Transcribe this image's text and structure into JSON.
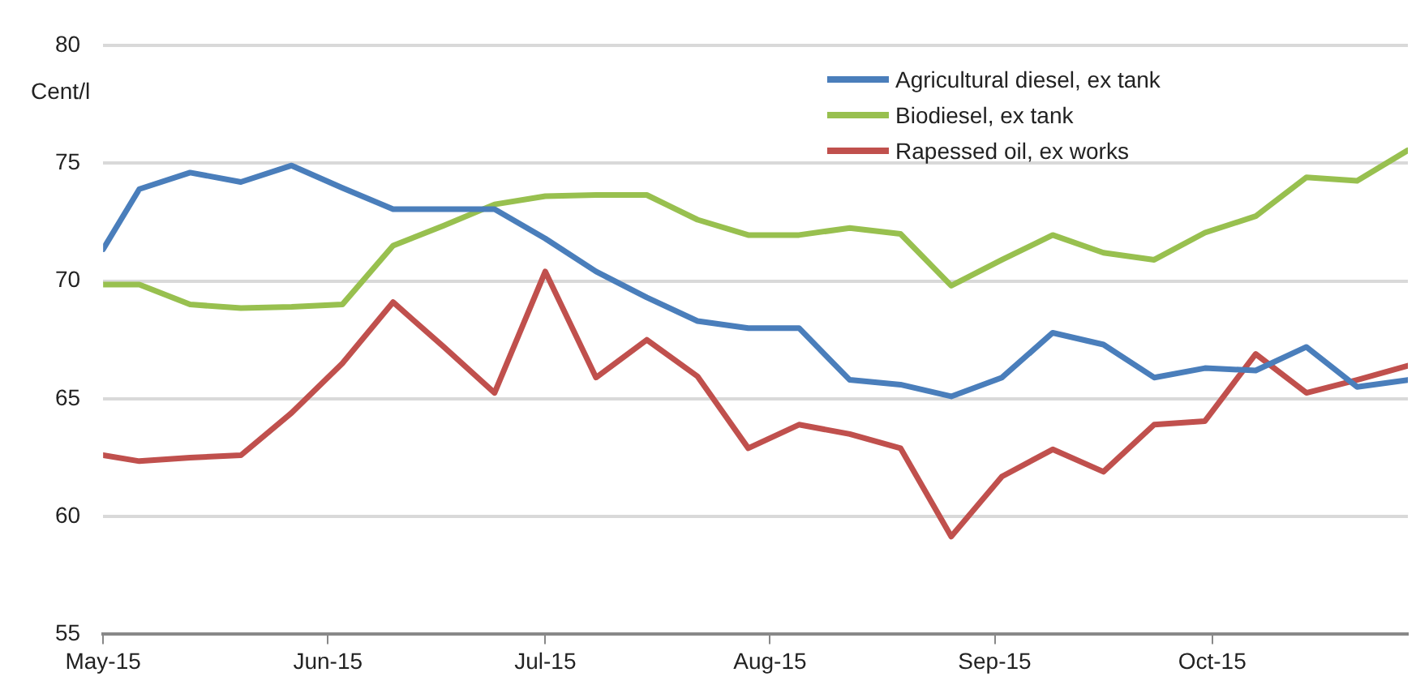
{
  "chart_data": {
    "type": "line",
    "ylabel": "Cent/l",
    "x": [
      "2015-05-01",
      "2015-05-06",
      "2015-05-13",
      "2015-05-20",
      "2015-05-27",
      "2015-06-03",
      "2015-06-10",
      "2015-06-17",
      "2015-06-24",
      "2015-07-01",
      "2015-07-08",
      "2015-07-15",
      "2015-07-22",
      "2015-07-29",
      "2015-08-05",
      "2015-08-12",
      "2015-08-19",
      "2015-08-26",
      "2015-09-02",
      "2015-09-09",
      "2015-09-16",
      "2015-09-23",
      "2015-09-30",
      "2015-10-07",
      "2015-10-14",
      "2015-10-21",
      "2015-10-28"
    ],
    "series": [
      {
        "name": "Agricultural diesel, ex tank",
        "color": "#4a7ebb",
        "values": [
          71.35,
          73.9,
          74.6,
          74.2,
          74.9,
          73.95,
          73.05,
          73.05,
          73.05,
          71.8,
          70.4,
          69.3,
          68.3,
          68.0,
          68.0,
          65.8,
          65.6,
          65.1,
          65.9,
          67.8,
          67.3,
          65.9,
          66.3,
          66.2,
          67.2,
          65.5,
          65.8
        ]
      },
      {
        "name": "Biodiesel, ex tank",
        "color": "#98c04f",
        "values": [
          69.85,
          69.85,
          69.0,
          68.85,
          68.9,
          69.0,
          71.5,
          72.35,
          73.25,
          73.6,
          73.65,
          73.65,
          72.6,
          71.95,
          71.95,
          72.25,
          72.0,
          69.8,
          70.9,
          71.95,
          71.2,
          70.9,
          72.05,
          72.75,
          74.4,
          74.25,
          75.55
        ]
      },
      {
        "name": "Rapessed oil, ex works",
        "color": "#c0504d",
        "values": [
          62.6,
          62.35,
          62.5,
          62.6,
          64.4,
          66.5,
          69.1,
          67.2,
          65.25,
          70.4,
          65.9,
          67.5,
          65.95,
          62.9,
          63.9,
          63.5,
          62.9,
          59.15,
          61.7,
          62.85,
          61.9,
          63.9,
          64.05,
          66.9,
          65.25,
          65.8,
          66.4
        ]
      }
    ],
    "xlim": [
      "2015-05-01",
      "2015-10-28"
    ],
    "xticks": [
      {
        "value": "2015-05-01",
        "label": "May-15"
      },
      {
        "value": "2015-06-01",
        "label": "Jun-15"
      },
      {
        "value": "2015-07-01",
        "label": "Jul-15"
      },
      {
        "value": "2015-08-01",
        "label": "Aug-15"
      },
      {
        "value": "2015-09-01",
        "label": "Sep-15"
      },
      {
        "value": "2015-10-01",
        "label": "Oct-15"
      }
    ],
    "ylim": [
      55,
      80
    ],
    "yticks": [
      55,
      60,
      65,
      70,
      75,
      80
    ],
    "grid": "y",
    "legend": "top right",
    "marker": "none",
    "line_style": "solid"
  }
}
